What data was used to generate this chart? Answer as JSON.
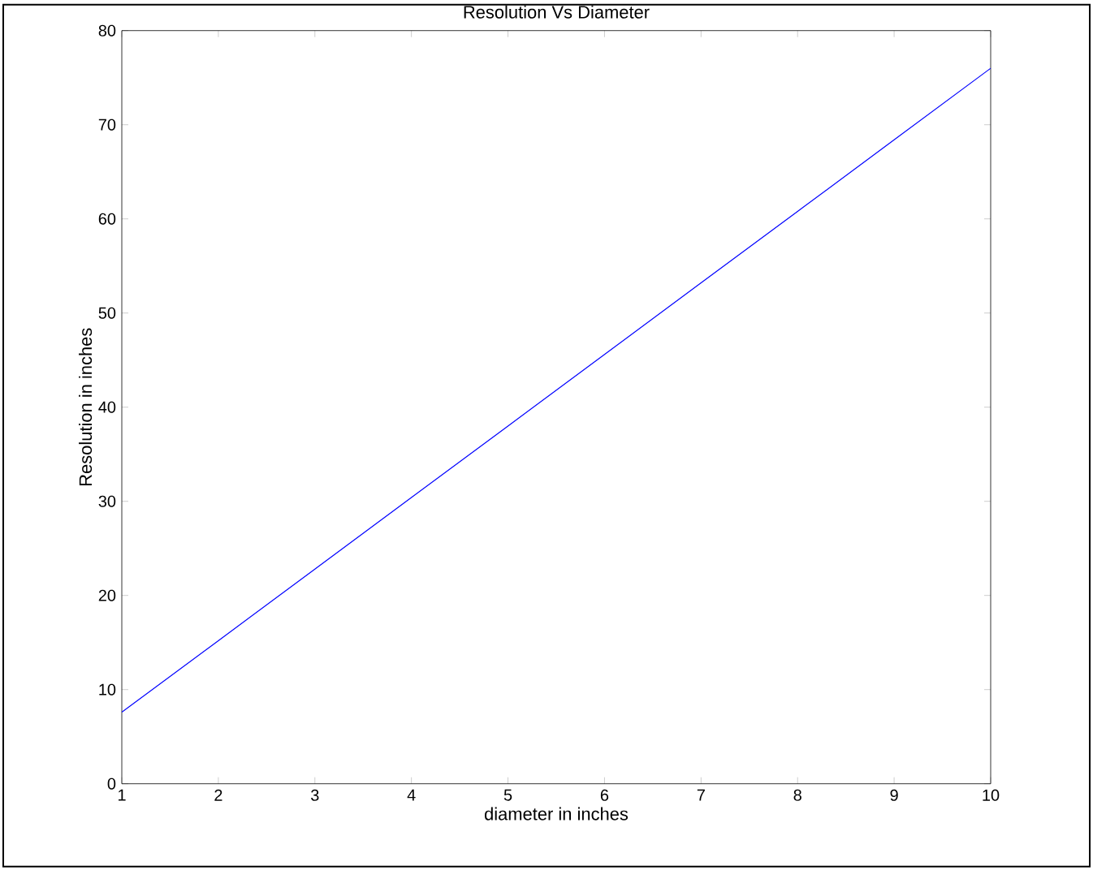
{
  "chart_data": {
    "type": "line",
    "title": "Resolution Vs Diameter",
    "xlabel": "diameter in inches",
    "ylabel": "Resolution in inches",
    "x": [
      1,
      2,
      3,
      4,
      5,
      6,
      7,
      8,
      9,
      10
    ],
    "series": [
      {
        "color": "#0000ff",
        "values": [
          7.6,
          15.2,
          22.8,
          30.4,
          38,
          45.6,
          53.2,
          60.8,
          68.4,
          76
        ]
      }
    ],
    "xlim": [
      1,
      10
    ],
    "ylim": [
      0,
      80
    ],
    "xticks": [
      1,
      2,
      3,
      4,
      5,
      6,
      7,
      8,
      9,
      10
    ],
    "yticks": [
      0,
      10,
      20,
      30,
      40,
      50,
      60,
      70,
      80
    ],
    "marker": "none",
    "line_style": "solid"
  }
}
